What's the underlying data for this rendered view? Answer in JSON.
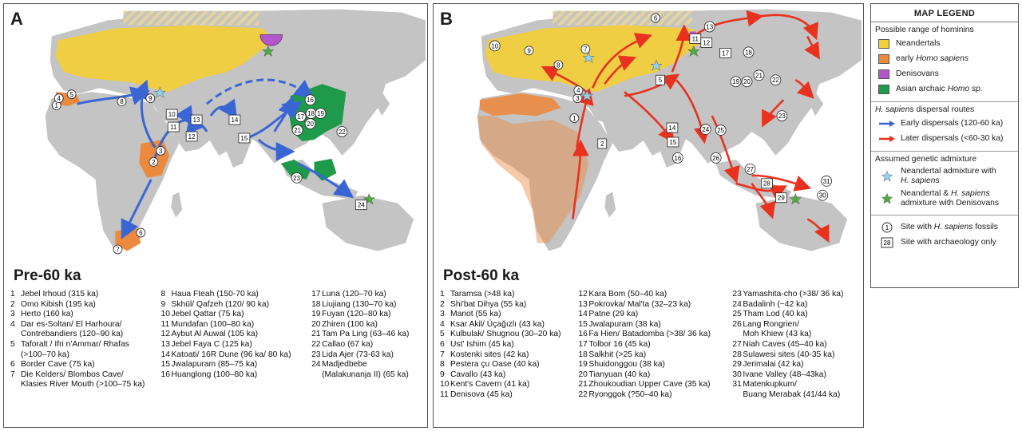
{
  "panel_a": {
    "letter": "A",
    "period": "Pre-60 ka",
    "sites": [
      [
        {
          "n": "1",
          "label": "Jebel Irhoud (315 ka)"
        },
        {
          "n": "2",
          "label": "Omo Kibish (195 ka)"
        },
        {
          "n": "3",
          "label": "Herto (160 ka)"
        },
        {
          "n": "4",
          "label": "Dar es-Soltan/ El Harhoura/"
        },
        {
          "n": "",
          "label": "Contrebandiers (120–90 ka)"
        },
        {
          "n": "5",
          "label": "Taforalt / Ifri n'Ammar/ Rhafas"
        },
        {
          "n": "",
          "label": "(>100–70 ka)"
        },
        {
          "n": "6",
          "label": "Border Cave (75 ka)"
        },
        {
          "n": "7",
          "label": "Die Kelders/ Blombos Cave/"
        },
        {
          "n": "",
          "label": "Klasies River Mouth (>100–75 ka)"
        }
      ],
      [
        {
          "n": "8",
          "label": "Haua Fteah (150-70 ka)"
        },
        {
          "n": "9",
          "label": "Skhūl/ Qafzeh (120/ 90 ka)"
        },
        {
          "n": "10",
          "label": "Jebel Qattar (75 ka)"
        },
        {
          "n": "11",
          "label": "Mundafan (100–80 ka)"
        },
        {
          "n": "12",
          "label": "Aybut Al Auwal (105 ka)"
        },
        {
          "n": "13",
          "label": "Jebel Faya C (125 ka)"
        },
        {
          "n": "14",
          "label": "Katoati/ 16R Dune (96 ka/ 80 ka)"
        },
        {
          "n": "15",
          "label": "Jwalapuram (85–75 ka)"
        },
        {
          "n": "16",
          "label": "Huanglong  (100–80 ka)"
        }
      ],
      [
        {
          "n": "17",
          "label": "Luna  (120–70 ka)"
        },
        {
          "n": "18",
          "label": "Liujiang (130–70 ka)"
        },
        {
          "n": "19",
          "label": "Fuyan (120–80 ka)"
        },
        {
          "n": "20",
          "label": "Zhiren (100 ka)"
        },
        {
          "n": "21",
          "label": "Tam Pa Ling  (63–46 ka)"
        },
        {
          "n": "22",
          "label": "Callao (67 ka)"
        },
        {
          "n": "23",
          "label": "Lida Ajer (73-63 ka)"
        },
        {
          "n": "24",
          "label": "Madjedbebe"
        },
        {
          "n": "",
          "label": "(Malakunanja II)  (65 ka)"
        }
      ]
    ],
    "map_labels": {
      "fossil": [
        "1",
        "2",
        "3",
        "4",
        "5",
        "6",
        "7",
        "8",
        "9",
        "16",
        "17",
        "18",
        "19",
        "20",
        "21",
        "22",
        "23"
      ],
      "archaeo": [
        "10",
        "11",
        "12",
        "13",
        "14",
        "15",
        "24"
      ]
    }
  },
  "panel_b": {
    "letter": "B",
    "period": "Post-60 ka",
    "sites": [
      [
        {
          "n": "1",
          "label": "Taramsa (>48 ka)"
        },
        {
          "n": "2",
          "label": "Shi'bat Dihya  (55 ka)"
        },
        {
          "n": "3",
          "label": "Manot (55 ka)"
        },
        {
          "n": "4",
          "label": "Ksar Akil/ Üçağızlı (43 ka)"
        },
        {
          "n": "5",
          "label": "Kulbulak/ Shugnou (30–20 ka)"
        },
        {
          "n": "6",
          "label": "Ust' Ishim (45 ka)"
        },
        {
          "n": "7",
          "label": "Kostenki sites (42 ka)"
        },
        {
          "n": "8",
          "label": "Pestera çu Oase (40 ka)"
        },
        {
          "n": "9",
          "label": "Cavallo (43 ka)"
        },
        {
          "n": "10",
          "label": "Kent's Cavern (41 ka)"
        },
        {
          "n": "11",
          "label": "Denisova (45 ka)"
        }
      ],
      [
        {
          "n": "12",
          "label": "Kara Bom  (50–40 ka)"
        },
        {
          "n": "13",
          "label": "Pokrovka/ Mal'ta  (32–23 ka)"
        },
        {
          "n": "14",
          "label": "Patne (29 ka)"
        },
        {
          "n": "15",
          "label": "Jwalapuram (38 ka)"
        },
        {
          "n": "16",
          "label": "Fa Hien/ Batadomba (>38/ 36 ka)"
        },
        {
          "n": "17",
          "label": "Tolbor 16 (45 ka)"
        },
        {
          "n": "18",
          "label": "Salkhit (>25 ka)"
        },
        {
          "n": "19",
          "label": "Shuidonggou  (38 ka)"
        },
        {
          "n": "20",
          "label": "Tianyuan (40 ka)"
        },
        {
          "n": "21",
          "label": "Zhoukoudian Upper Cave (35 ka)"
        },
        {
          "n": "22",
          "label": "Ryonggok  (?50–40 ka)"
        }
      ],
      [
        {
          "n": "23",
          "label": "Yamashita-cho (>38/ 36 ka)"
        },
        {
          "n": "24",
          "label": "Badalinh (~42 ka)"
        },
        {
          "n": "25",
          "label": "Tham Lod (40 ka)"
        },
        {
          "n": "26",
          "label": "Lang Rongrien/"
        },
        {
          "n": "",
          "label": "Moh Khiew  (43 ka)"
        },
        {
          "n": "27",
          "label": "Niah Caves  (45–40 ka)"
        },
        {
          "n": "28",
          "label": "Sulawesi sites (40-35 ka)"
        },
        {
          "n": "29",
          "label": "Jerimalai  (42 ka)"
        },
        {
          "n": "30",
          "label": "Ivane Valley (48–43ka)"
        },
        {
          "n": "31",
          "label": "Matenkupkum/"
        },
        {
          "n": "",
          "label": "Buang Merabak (41/44 ka)"
        }
      ]
    ]
  },
  "legend": {
    "title": "MAP LEGEND",
    "range_heading": "Possible range of hominins",
    "ranges": [
      {
        "label": "Neandertals",
        "color": "#f2cf3c"
      },
      {
        "label_pre": "early ",
        "label_italic": "Homo sapiens",
        "color": "#eb8a3f"
      },
      {
        "label": "Denisovans",
        "color": "#b455cc"
      },
      {
        "label_pre": "Asian archaic ",
        "label_italic": "Homo sp.",
        "color": "#1f9a4a"
      }
    ],
    "dispersal_heading_italic": "H. sapiens",
    "dispersal_heading_rest": " dispersal routes",
    "dispersals": [
      {
        "label": "Early dispersals (120-60 ka)",
        "color": "#3a66d4"
      },
      {
        "label": "Later dispersals (<60-30 ka)",
        "color": "#e8311f"
      }
    ],
    "admixture_heading": "Assumed genetic admixture",
    "admixtures": [
      {
        "line1": "Neandertal admixture with",
        "line2_italic": "H. sapiens",
        "color": "#8fd3f0"
      },
      {
        "line1_pre": "Neandertal & ",
        "line1_italic": "H. sapiens",
        "line2": "admixture with Denisovans",
        "color": "#4caf3a"
      }
    ],
    "site_types": [
      {
        "symbol": "1",
        "label_pre": "Site with ",
        "label_italic": "H. sapiens",
        "label_post": " fossils"
      },
      {
        "symbol": "28",
        "label": "Site with archaeology only"
      }
    ]
  },
  "colors": {
    "land": "#c4c4c4",
    "neandertal": "#f2cf3c",
    "sapiens": "#eb8a3f",
    "denisovan": "#b455cc",
    "asian_archaic": "#1f9a4a",
    "early_route": "#3a66d4",
    "later_route": "#e8311f"
  }
}
